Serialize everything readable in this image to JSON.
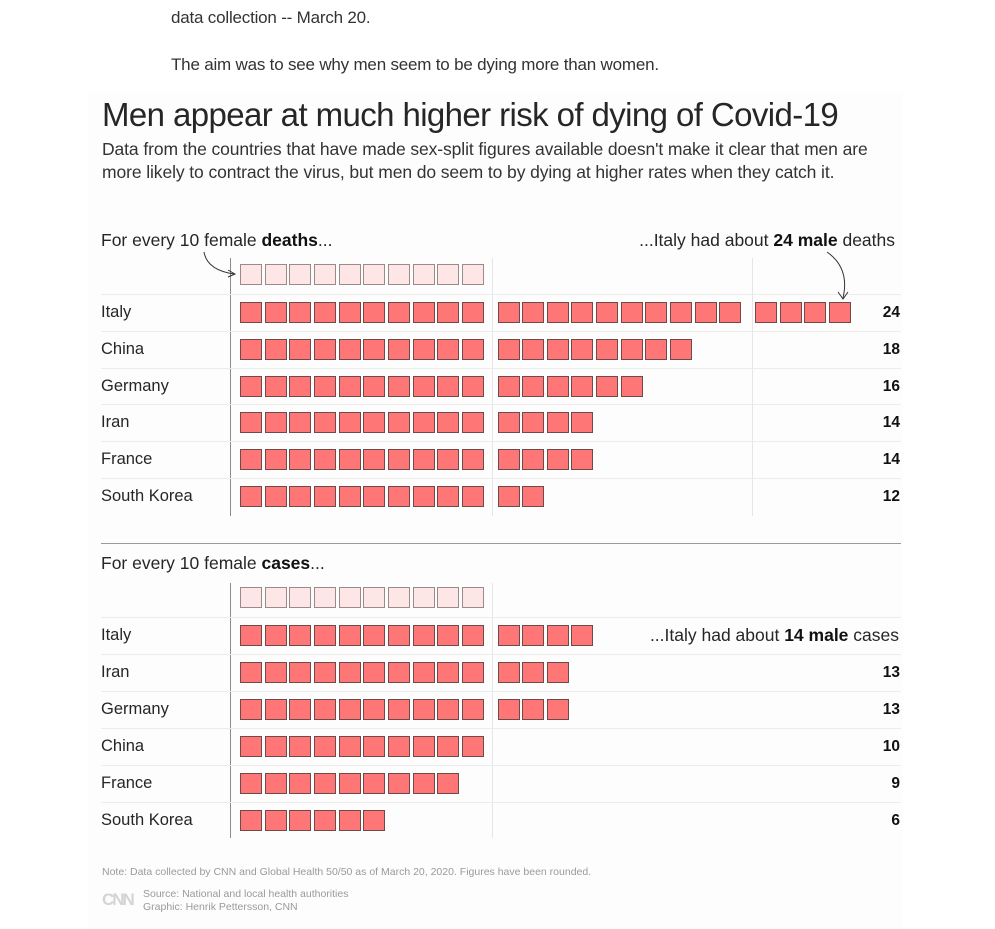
{
  "article": {
    "paragraph_1": "data collection -- March 20.",
    "paragraph_2": "The aim was to see why men seem to be dying more than women."
  },
  "graphic": {
    "title": "Men appear at much higher risk of dying of Covid-19",
    "subtitle": "Data from the countries that have made sex-split figures available doesn't make it clear that men are more likely to contract the virus, but men do seem to by dying at higher rates when they catch it.",
    "colors": {
      "male": "#ff7676",
      "female": "#ffe6e6"
    },
    "note": "Note: Data collected by CNN and Global Health 50/50 as of March 20, 2020. Figures have been rounded.",
    "logo": "CNN",
    "source": "Source: National and local health authorities",
    "credit": "Graphic: Henrik Pettersson, CNN"
  },
  "chart_data": [
    {
      "type": "bar",
      "subtype": "waffle-row",
      "metric": "deaths",
      "lead_prefix": "For every 10 female ",
      "lead_bold": "deaths",
      "lead_suffix": "...",
      "annotation_prefix": "...Italy had about ",
      "annotation_bold": "24 male",
      "annotation_suffix": " deaths",
      "female_reference": 10,
      "categories": [
        "Italy",
        "China",
        "Germany",
        "Iran",
        "France",
        "South Korea"
      ],
      "values": [
        24,
        18,
        16,
        14,
        14,
        12
      ],
      "value_labels": [
        "24",
        "18",
        "16",
        "14",
        "14",
        "12"
      ],
      "show_label": [
        true,
        true,
        true,
        true,
        true,
        true
      ],
      "unit": "male deaths per 10 female deaths",
      "group_size": 10,
      "gridlines": [
        10,
        20
      ]
    },
    {
      "type": "bar",
      "subtype": "waffle-row",
      "metric": "cases",
      "lead_prefix": "For every 10 female ",
      "lead_bold": "cases",
      "lead_suffix": "...",
      "annotation_prefix": "...Italy had about ",
      "annotation_bold": "14 male",
      "annotation_suffix": " cases",
      "female_reference": 10,
      "categories": [
        "Italy",
        "Iran",
        "Germany",
        "China",
        "France",
        "South Korea"
      ],
      "values": [
        14,
        13,
        13,
        10,
        9,
        6
      ],
      "value_labels": [
        "14",
        "13",
        "13",
        "10",
        "9",
        "6"
      ],
      "show_label": [
        false,
        true,
        true,
        true,
        true,
        true
      ],
      "unit": "male cases per 10 female cases",
      "group_size": 10,
      "gridlines": [
        10
      ]
    }
  ]
}
